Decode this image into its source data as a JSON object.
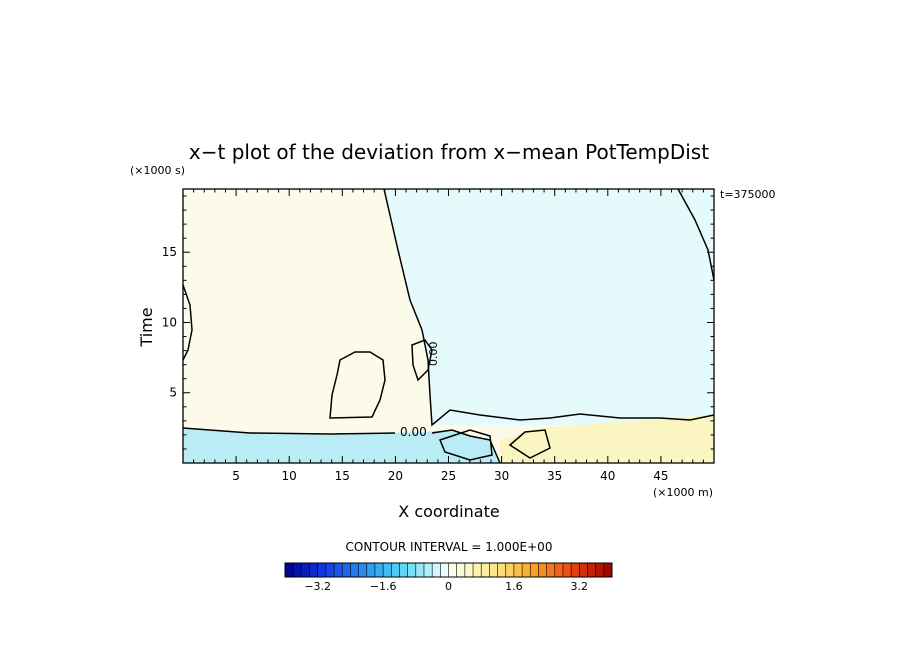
{
  "chart_data": {
    "type": "heatmap",
    "title": "x−t plot of the deviation from x−mean PotTempDist",
    "xlabel": "X coordinate",
    "ylabel": "Time",
    "x_unit_label": "(×1000 m)",
    "y_unit_label": "(×1000 s)",
    "xlim": [
      0,
      50
    ],
    "ylim": [
      0,
      19.5
    ],
    "x_ticks": [
      5,
      10,
      15,
      20,
      25,
      30,
      35,
      40,
      45
    ],
    "x_tick_labels": [
      "5",
      "10",
      "15",
      "20",
      "25",
      "30",
      "35",
      "40",
      "45"
    ],
    "y_ticks": [
      5,
      10,
      15
    ],
    "y_tick_labels": [
      "5",
      "10",
      "15"
    ],
    "time_stamp": "t=375000",
    "contour_label": "0.00",
    "contour_interval_text": "CONTOUR INTERVAL = 1.000E+00",
    "colorbar": {
      "min": -4,
      "max": 4,
      "tick_values": [
        -3.2,
        -1.6,
        0,
        1.6,
        3.2
      ],
      "tick_labels": [
        "−3.2",
        "−1.6",
        "0",
        "1.6",
        "3.2"
      ]
    },
    "regions": [
      {
        "name": "upper-left",
        "value_range": [
          0,
          0.4
        ],
        "approx_value": 0.2
      },
      {
        "name": "upper-right",
        "value_range": [
          -0.4,
          0
        ],
        "approx_value": -0.2
      },
      {
        "name": "bottom-left-band",
        "value_range": [
          -1.6,
          -0.4
        ],
        "approx_value": -0.8
      },
      {
        "name": "bottom-right-band",
        "value_range": [
          0.4,
          1.2
        ],
        "approx_value": 0.8
      }
    ]
  }
}
